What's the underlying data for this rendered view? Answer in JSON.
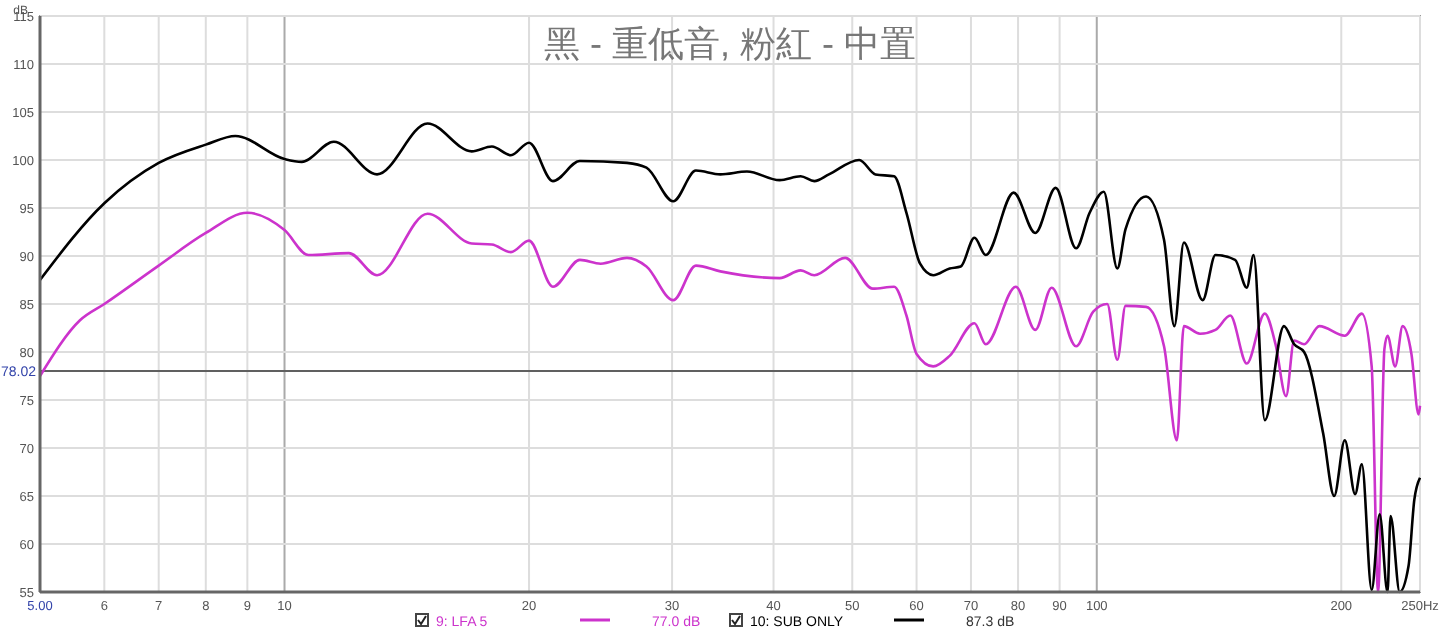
{
  "chart_data": {
    "type": "line",
    "title": "黑 - 重低音, 粉紅 - 中置",
    "ylabel": "dB",
    "log": "x",
    "grid": true,
    "legend": "bottom",
    "marker": "none",
    "line_style": "solid",
    "xlim": [
      5,
      250
    ],
    "xticks": [
      {
        "value": 5,
        "label": "5.00"
      },
      6,
      7,
      8,
      9,
      10,
      20,
      30,
      40,
      50,
      60,
      70,
      80,
      90,
      100,
      200,
      {
        "value": 250,
        "label": "250Hz"
      }
    ],
    "ylim": [
      55,
      115
    ],
    "yticks": [
      55,
      60,
      65,
      70,
      75,
      80,
      85,
      90,
      95,
      100,
      105,
      110,
      115
    ],
    "ref_lines": [
      {
        "axis": "y",
        "value": 78.02,
        "label": "78.02",
        "color": "#606060"
      }
    ],
    "annotations": [
      "77.0 dB",
      "87.3 dB"
    ],
    "series": [
      {
        "name": "9: LFA 5",
        "color": "#cc33cc",
        "x": [
          5,
          5.6,
          6,
          7,
          8,
          9,
          10,
          10.7,
          12,
          13,
          15,
          17,
          18,
          19,
          20,
          21.4,
          23.1,
          24.5,
          26.4,
          27.9,
          30.1,
          32.1,
          34.4,
          40.7,
          43.2,
          44.9,
          49,
          53,
          56.3,
          58.3,
          60,
          62.9,
          65.9,
          70.7,
          73,
          79.5,
          84,
          88,
          94.3,
          99,
          103,
          106,
          108.5,
          115,
          121,
          125.5,
          128,
          134,
          140,
          146,
          153,
          161,
          166,
          171,
          175,
          180,
          188,
          202,
          212,
          218,
          222,
          226,
          228,
          233,
          238,
          244,
          249,
          250
        ],
        "values": [
          77.5,
          83.3,
          85,
          89,
          92.4,
          94.5,
          92.7,
          90.1,
          90.3,
          88,
          94.4,
          91.3,
          91.2,
          90.4,
          91.6,
          86.8,
          89.6,
          89.2,
          89.8,
          88.9,
          85.4,
          89,
          88.4,
          87.7,
          88.5,
          88,
          89.8,
          86.6,
          86.8,
          83.8,
          79.8,
          78.5,
          79.6,
          83,
          80.8,
          86.8,
          82.3,
          86.7,
          80.6,
          84.2,
          85,
          79.2,
          84.8,
          84.7,
          80.6,
          70.8,
          82.7,
          81.9,
          82.3,
          83.8,
          78.8,
          84,
          80.8,
          75.4,
          81.2,
          80.8,
          82.7,
          81.7,
          84,
          78.5,
          55,
          80.3,
          81.7,
          78.5,
          82.7,
          79.8,
          73.5,
          74.4
        ]
      },
      {
        "name": "10: SUB ONLY",
        "color": "#000000",
        "x": [
          5,
          6,
          7,
          8,
          8.7,
          10,
          10.5,
          11.5,
          13,
          15,
          17,
          18,
          19,
          20,
          21.4,
          23.1,
          26.4,
          27.9,
          30.1,
          32.1,
          34.4,
          37.1,
          40.7,
          43.2,
          44.9,
          46.8,
          51,
          53.4,
          56.3,
          58.3,
          60.6,
          62.9,
          65.9,
          68,
          70.7,
          73,
          79,
          84,
          89,
          94.3,
          98,
          102,
          106,
          108.5,
          115,
          121,
          124.6,
          128,
          135,
          140,
          148,
          153,
          156,
          161,
          170,
          175,
          180,
          190,
          196,
          202,
          208,
          212,
          218,
          223,
          228,
          230,
          236,
          242,
          246,
          250
        ],
        "values": [
          87.5,
          95.5,
          99.7,
          101.6,
          102.5,
          100.1,
          99.8,
          101.9,
          98.5,
          103.8,
          100.9,
          101.4,
          100.5,
          101.8,
          97.8,
          99.9,
          99.7,
          99.2,
          95.7,
          98.9,
          98.5,
          98.8,
          97.9,
          98.3,
          97.8,
          98.5,
          100,
          98.5,
          98.3,
          94.5,
          89.2,
          88,
          88.7,
          88.9,
          91.9,
          90.1,
          96.6,
          92.4,
          97.1,
          90.8,
          94.5,
          96.7,
          88.7,
          92.8,
          96.2,
          91.7,
          82.7,
          91.4,
          85.4,
          90.1,
          89.6,
          86.7,
          90.1,
          72.9,
          82.7,
          80.8,
          80,
          71.5,
          65,
          70.8,
          65.2,
          68.3,
          55.2,
          63.1,
          55,
          62.9,
          55,
          57.7,
          64.6,
          66.9
        ]
      }
    ]
  }
}
